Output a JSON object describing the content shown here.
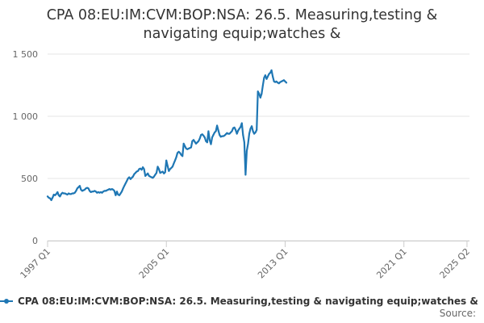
{
  "chart_data": {
    "type": "line",
    "title": "CPA 08:EU:IM:CVM:BOP:NSA: 26.5. Measuring,testing &\nnavigating equip;watches &",
    "xlabel": "",
    "ylabel": "",
    "ylim": [
      0,
      1500
    ],
    "y_ticks": [
      0,
      500,
      1000,
      1500
    ],
    "y_tick_labels": [
      "0",
      "500",
      "1 000",
      "1 500"
    ],
    "x_ticks": [
      "1997 Q1",
      "2005 Q1",
      "2013 Q1",
      "2021 Q1",
      "2025 Q2"
    ],
    "grid": true,
    "legend_position": "bottom",
    "color": "#1f77b4",
    "series": [
      {
        "name": "CPA 08:EU:IM:CVM:BOP:NSA: 26.5. Measuring,testing & navigating equip;watches &",
        "x_start": "1997-01",
        "x_end": "2025-06",
        "frequency": "monthly",
        "values": [
          355,
          345,
          340,
          325,
          345,
          370,
          365,
          375,
          390,
          365,
          355,
          375,
          385,
          380,
          380,
          375,
          370,
          380,
          375,
          375,
          380,
          380,
          385,
          400,
          420,
          430,
          440,
          410,
          400,
          405,
          410,
          420,
          425,
          420,
          400,
          390,
          395,
          395,
          400,
          395,
          385,
          390,
          385,
          390,
          385,
          395,
          400,
          400,
          405,
          410,
          415,
          410,
          415,
          410,
          400,
          365,
          395,
          370,
          365,
          380,
          395,
          420,
          440,
          460,
          480,
          500,
          510,
          495,
          505,
          515,
          535,
          545,
          555,
          560,
          575,
          580,
          570,
          590,
          575,
          520,
          530,
          540,
          520,
          515,
          510,
          505,
          515,
          530,
          545,
          595,
          575,
          545,
          550,
          555,
          540,
          550,
          645,
          600,
          560,
          575,
          585,
          595,
          620,
          645,
          670,
          705,
          715,
          705,
          690,
          680,
          780,
          760,
          740,
          735,
          740,
          745,
          750,
          800,
          810,
          795,
          780,
          790,
          800,
          820,
          850,
          855,
          845,
          830,
          800,
          790,
          880,
          810,
          775,
          830,
          850,
          870,
          880,
          925,
          885,
          850,
          835,
          840,
          840,
          845,
          855,
          865,
          860,
          860,
          870,
          880,
          905,
          910,
          890,
          860,
          885,
          900,
          915,
          945,
          850,
          790,
          530,
          720,
          780,
          860,
          900,
          920,
          880,
          860,
          870,
          890,
          1200,
          1180,
          1150,
          1180,
          1250,
          1310,
          1330,
          1300,
          1320,
          1340,
          1350,
          1370,
          1320,
          1280,
          1275,
          1280,
          1270,
          1265,
          1275,
          1280,
          1285,
          1290,
          1280,
          1270
        ]
      }
    ],
    "credits": "Source:"
  }
}
